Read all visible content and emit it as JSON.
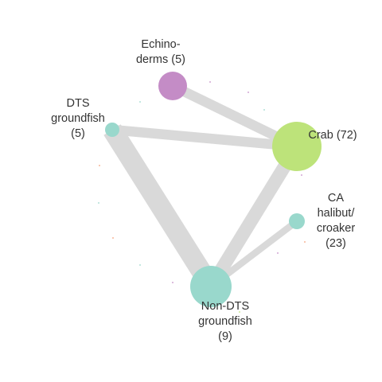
{
  "network": {
    "edge_color": "#d9d9d9",
    "nodes": [
      {
        "id": "echinoderms",
        "label_lines": [
          "Echino-",
          "derms (5)"
        ],
        "color": "#c48cc6"
      },
      {
        "id": "dts-groundfish",
        "label_lines": [
          "DTS",
          "groundfish",
          "(5)"
        ],
        "color": "#99d8cc"
      },
      {
        "id": "crab",
        "label_lines": [
          "Crab (72)"
        ],
        "color": "#bde37a"
      },
      {
        "id": "ca-halibut-croaker",
        "label_lines": [
          "CA",
          "halibut/",
          "croaker",
          "(23)"
        ],
        "color": "#99d8cc"
      },
      {
        "id": "non-dts-groundfish",
        "label_lines": [
          "Non-DTS",
          "groundfish",
          "(9)"
        ],
        "color": "#99d8cc"
      }
    ],
    "edges": [
      {
        "from": "echinoderms",
        "to": "crab",
        "weight": 3
      },
      {
        "from": "dts-groundfish",
        "to": "crab",
        "weight": 3
      },
      {
        "from": "dts-groundfish",
        "to": "non-dts-groundfish",
        "weight": 6
      },
      {
        "from": "crab",
        "to": "non-dts-groundfish",
        "weight": 4
      },
      {
        "from": "ca-halibut-croaker",
        "to": "non-dts-groundfish",
        "weight": 2
      }
    ],
    "minor_points": [
      {
        "id": "p1",
        "color": "#c48cc6"
      },
      {
        "id": "p2",
        "color": "#c48cc6"
      },
      {
        "id": "p3",
        "color": "#99d8cc"
      },
      {
        "id": "p4",
        "color": "#99d8cc"
      },
      {
        "id": "p5",
        "color": "#f4a07a"
      },
      {
        "id": "p6",
        "color": "#c48cc6"
      },
      {
        "id": "p7",
        "color": "#99d8cc"
      },
      {
        "id": "p8",
        "color": "#f4a07a"
      },
      {
        "id": "p9",
        "color": "#f4a07a"
      },
      {
        "id": "p10",
        "color": "#c48cc6"
      },
      {
        "id": "p11",
        "color": "#99d8cc"
      },
      {
        "id": "p12",
        "color": "#c48cc6"
      },
      {
        "id": "p13",
        "color": "#bde37a"
      }
    ]
  }
}
